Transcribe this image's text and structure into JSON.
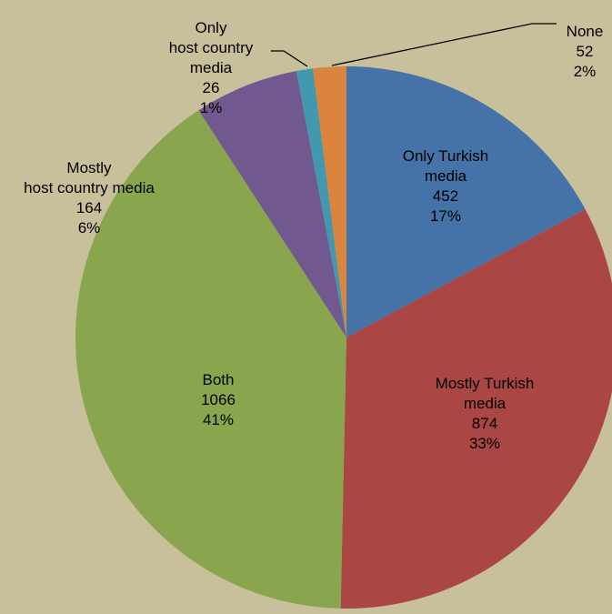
{
  "chart_data": {
    "type": "pie",
    "categories": [
      "Only Turkish\nmedia",
      "Mostly Turkish\nmedia",
      "Both",
      "Mostly\nhost country media",
      "Only\nhost country\nmedia",
      "None"
    ],
    "values": [
      452,
      874,
      1066,
      164,
      26,
      52
    ],
    "percentages": [
      17,
      33,
      41,
      6,
      1,
      2
    ],
    "percentage_labels": [
      "17%",
      "33%",
      "41%",
      "6%",
      "1%",
      "2%"
    ],
    "colors": [
      "#4572a7",
      "#aa4643",
      "#89a54e",
      "#71588f",
      "#4198af",
      "#db843d"
    ]
  }
}
